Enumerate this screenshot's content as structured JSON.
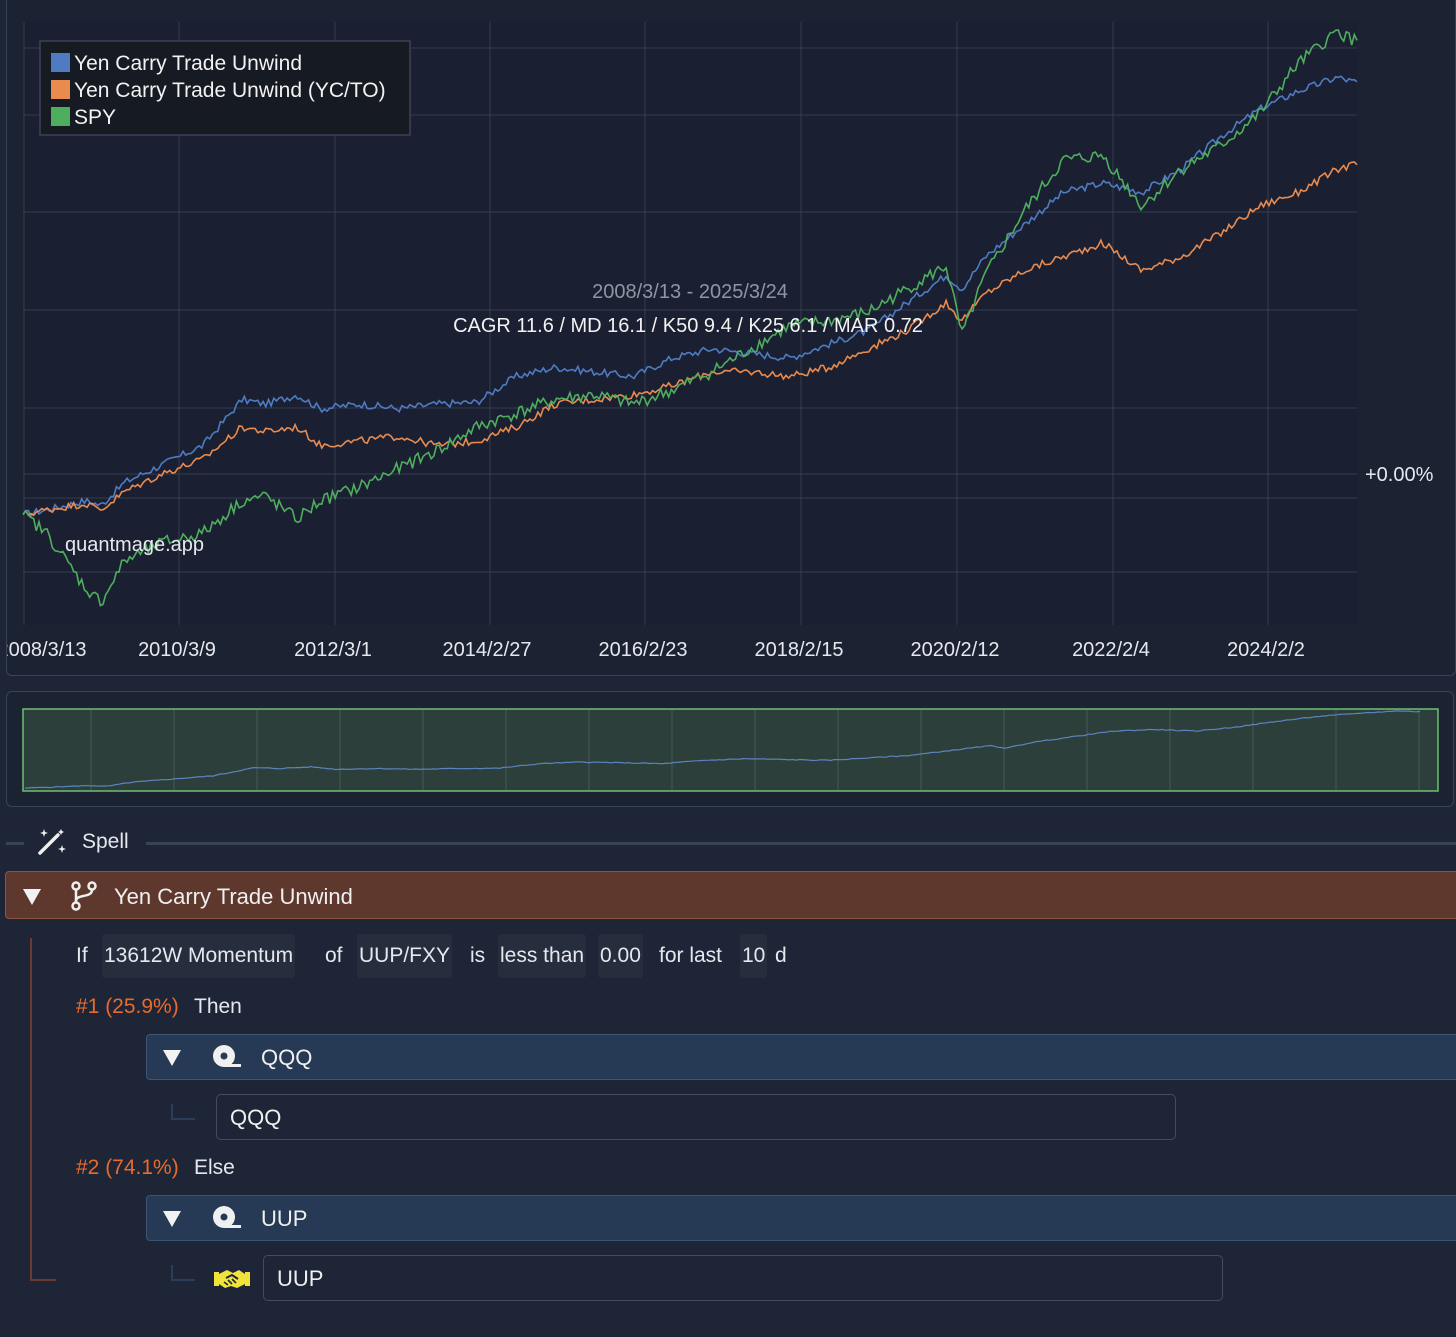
{
  "chart": {
    "legend": [
      {
        "label": "Yen Carry Trade Unwind",
        "color": "#4f7bc2"
      },
      {
        "label": "Yen Carry Trade Unwind (YC/TO)",
        "color": "#e98a4e"
      },
      {
        "label": "SPY",
        "color": "#4fae5e"
      }
    ],
    "date_range": "2008/3/13 - 2025/3/24",
    "stats": "CAGR 11.6 / MD 16.1 / K50 9.4 / K25 6.1 / MAR 0.72",
    "watermark": "quantmage.app",
    "y_marker": "+0.00%",
    "x_ticks": [
      "2008/3/13",
      "2010/3/9",
      "2012/3/1",
      "2014/2/27",
      "2016/2/23",
      "2018/2/15",
      "2020/2/12",
      "2022/2/4",
      "2024/2/2"
    ]
  },
  "chart_data": {
    "type": "line",
    "x": [
      2008.2,
      2008.5,
      2009.0,
      2009.2,
      2009.5,
      2010.0,
      2010.5,
      2011.0,
      2011.3,
      2011.7,
      2012.0,
      2012.5,
      2013.0,
      2013.5,
      2014.0,
      2014.5,
      2015.0,
      2015.5,
      2016.0,
      2016.5,
      2017.0,
      2017.5,
      2018.0,
      2018.5,
      2019.0,
      2019.5,
      2020.0,
      2020.2,
      2020.5,
      2021.0,
      2021.5,
      2022.0,
      2022.5,
      2023.0,
      2023.5,
      2024.0,
      2024.5,
      2025.0,
      2025.2
    ],
    "series": [
      {
        "name": "Yen Carry Trade Unwind",
        "color": "#4f7bc2",
        "values": [
          0.0,
          0.05,
          0.15,
          0.1,
          0.35,
          0.55,
          0.75,
          1.25,
          1.2,
          1.3,
          1.15,
          1.2,
          1.15,
          1.2,
          1.22,
          1.5,
          1.6,
          1.55,
          1.5,
          1.7,
          1.8,
          1.75,
          1.7,
          1.85,
          2.0,
          2.3,
          2.6,
          2.45,
          2.8,
          3.15,
          3.5,
          3.6,
          3.5,
          3.75,
          4.1,
          4.4,
          4.6,
          4.75,
          4.7
        ]
      },
      {
        "name": "Yen Carry Trade Unwind (YC/TO)",
        "color": "#e98a4e",
        "values": [
          0.0,
          0.05,
          0.12,
          0.05,
          0.25,
          0.45,
          0.6,
          0.95,
          0.9,
          0.95,
          0.75,
          0.8,
          0.85,
          0.75,
          0.8,
          0.95,
          1.2,
          1.25,
          1.3,
          1.4,
          1.55,
          1.55,
          1.5,
          1.6,
          1.8,
          2.0,
          2.3,
          2.1,
          2.4,
          2.65,
          2.8,
          2.95,
          2.65,
          2.8,
          3.05,
          3.35,
          3.5,
          3.75,
          3.8
        ]
      },
      {
        "name": "SPY",
        "color": "#4fae5e",
        "values": [
          0.0,
          -0.2,
          -0.8,
          -0.95,
          -0.5,
          -0.3,
          -0.2,
          0.15,
          0.2,
          -0.05,
          0.15,
          0.3,
          0.5,
          0.7,
          0.95,
          1.1,
          1.25,
          1.3,
          1.2,
          1.35,
          1.55,
          1.8,
          2.05,
          2.1,
          2.2,
          2.45,
          2.7,
          1.95,
          2.6,
          3.3,
          3.85,
          3.9,
          3.35,
          3.75,
          4.0,
          4.35,
          4.9,
          5.25,
          5.15
        ]
      }
    ],
    "xlabel": "",
    "ylabel": "",
    "ylim": [
      -1.2,
      5.35
    ],
    "xlim": [
      2008.2,
      2025.25
    ],
    "grid": true,
    "legend_position": "top-left"
  },
  "spell": {
    "label": "Spell"
  },
  "strategy": {
    "title": "Yen Carry Trade Unwind",
    "condition": {
      "if": "If",
      "indicator": "13612W Momentum",
      "of": "of",
      "ticker": "UUP/FXY",
      "is": "is",
      "comparator": "less than",
      "threshold": "0.00",
      "for_last": "for last",
      "days": "10",
      "unit": "d"
    },
    "branches": [
      {
        "label": "#1 (25.9%)",
        "word": "Then",
        "group": "QQQ",
        "asset": "QQQ"
      },
      {
        "label": "#2 (74.1%)",
        "word": "Else",
        "group": "UUP",
        "asset": "UUP"
      }
    ]
  }
}
